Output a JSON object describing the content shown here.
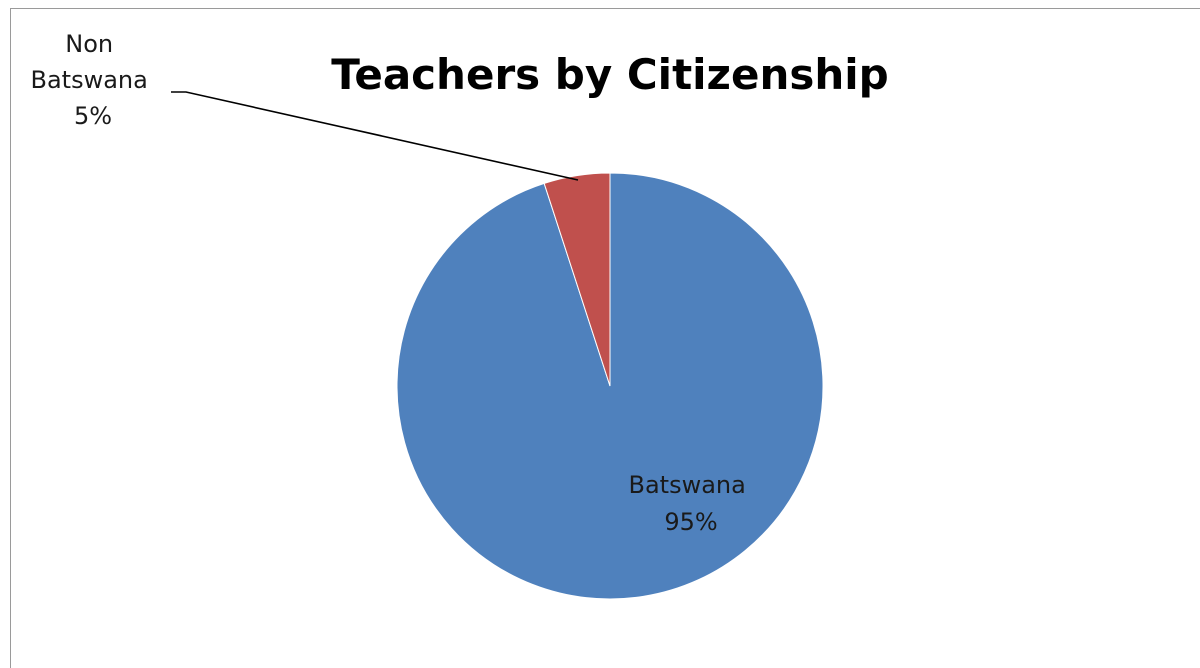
{
  "chart_data": {
    "type": "pie",
    "title": "Teachers by Citizenship",
    "slices": [
      {
        "label": "Batswana",
        "value": 95,
        "value_label": "95%",
        "color": "#4f81bd"
      },
      {
        "label": "Non Batswana",
        "value": 5,
        "value_label": "5%",
        "color": "#c0504d"
      }
    ],
    "start_angle": "12 o'clock",
    "direction": "clockwise",
    "legend": "none",
    "data_labels": {
      "Batswana": [
        "Batswana",
        "95%"
      ],
      "Non Batswana": [
        "Non",
        "Batswana",
        "5%"
      ]
    }
  }
}
